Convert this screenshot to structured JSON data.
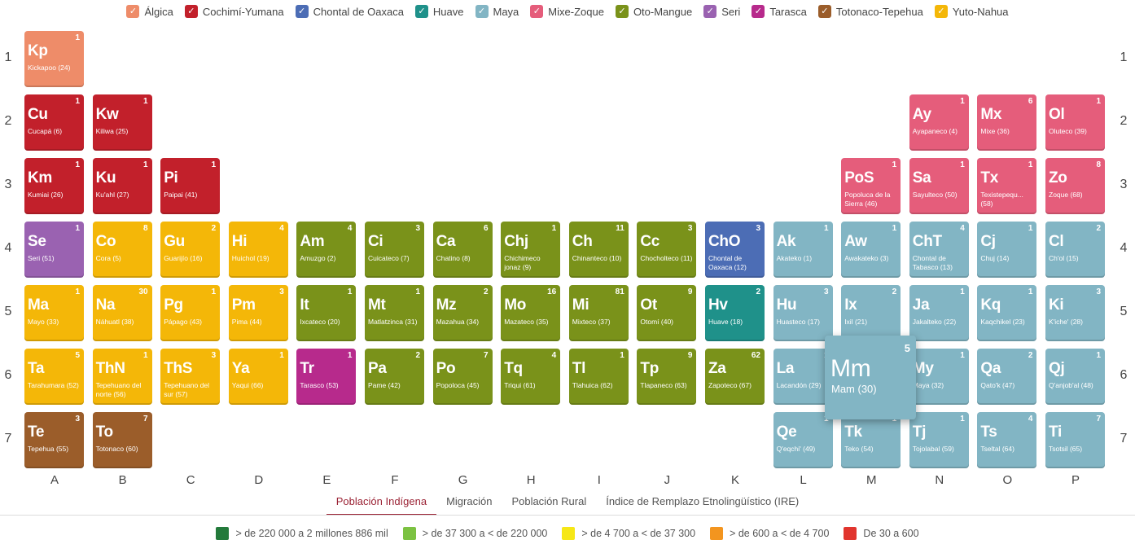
{
  "families": [
    {
      "name": "Álgica",
      "color": "#ee8c69"
    },
    {
      "name": "Cochimí-Yumana",
      "color": "#c2202b"
    },
    {
      "name": "Chontal de Oaxaca",
      "color": "#4c6db5"
    },
    {
      "name": "Huave",
      "color": "#1f918a"
    },
    {
      "name": "Maya",
      "color": "#82b5c4"
    },
    {
      "name": "Mixe-Zoque",
      "color": "#e55d7b"
    },
    {
      "name": "Oto-Mangue",
      "color": "#7a921a"
    },
    {
      "name": "Seri",
      "color": "#9a62b1"
    },
    {
      "name": "Tarasca",
      "color": "#b72a8c"
    },
    {
      "name": "Totonaco-Tepehua",
      "color": "#9b5d2a"
    },
    {
      "name": "Yuto-Nahua",
      "color": "#f4b708"
    }
  ],
  "check_glyph": "✓",
  "row_labels": [
    "1",
    "2",
    "3",
    "4",
    "5",
    "6",
    "7"
  ],
  "col_labels": [
    "A",
    "B",
    "C",
    "D",
    "E",
    "F",
    "G",
    "H",
    "I",
    "J",
    "K",
    "L",
    "M",
    "N",
    "O",
    "P"
  ],
  "elements": [
    {
      "sym": "Kp",
      "name": "Kickapoo (24)",
      "num": "1",
      "fam": 0,
      "row": 1,
      "col": 1
    },
    {
      "sym": "Cu",
      "name": "Cucapá (6)",
      "num": "1",
      "fam": 1,
      "row": 2,
      "col": 1
    },
    {
      "sym": "Kw",
      "name": "Kiliwa (25)",
      "num": "1",
      "fam": 1,
      "row": 2,
      "col": 2
    },
    {
      "sym": "Ay",
      "name": "Ayapaneco (4)",
      "num": "1",
      "fam": 5,
      "row": 2,
      "col": 14
    },
    {
      "sym": "Mx",
      "name": "Mixe (36)",
      "num": "6",
      "fam": 5,
      "row": 2,
      "col": 15
    },
    {
      "sym": "Ol",
      "name": "Oluteco (39)",
      "num": "1",
      "fam": 5,
      "row": 2,
      "col": 16
    },
    {
      "sym": "Km",
      "name": "Kumiai (26)",
      "num": "1",
      "fam": 1,
      "row": 3,
      "col": 1
    },
    {
      "sym": "Ku",
      "name": "Ku'ahl (27)",
      "num": "1",
      "fam": 1,
      "row": 3,
      "col": 2
    },
    {
      "sym": "Pi",
      "name": "Paipai (41)",
      "num": "1",
      "fam": 1,
      "row": 3,
      "col": 3
    },
    {
      "sym": "PoS",
      "name": "Popoluca de la Sierra (46)",
      "num": "1",
      "fam": 5,
      "row": 3,
      "col": 13
    },
    {
      "sym": "Sa",
      "name": "Sayulteco (50)",
      "num": "1",
      "fam": 5,
      "row": 3,
      "col": 14
    },
    {
      "sym": "Tx",
      "name": "Texistepequ... (58)",
      "num": "1",
      "fam": 5,
      "row": 3,
      "col": 15
    },
    {
      "sym": "Zo",
      "name": "Zoque (68)",
      "num": "8",
      "fam": 5,
      "row": 3,
      "col": 16
    },
    {
      "sym": "Se",
      "name": "Seri (51)",
      "num": "1",
      "fam": 7,
      "row": 4,
      "col": 1
    },
    {
      "sym": "Co",
      "name": "Cora (5)",
      "num": "8",
      "fam": 10,
      "row": 4,
      "col": 2
    },
    {
      "sym": "Gu",
      "name": "Guarijío (16)",
      "num": "2",
      "fam": 10,
      "row": 4,
      "col": 3
    },
    {
      "sym": "Hi",
      "name": "Huichol (19)",
      "num": "4",
      "fam": 10,
      "row": 4,
      "col": 4
    },
    {
      "sym": "Am",
      "name": "Amuzgo (2)",
      "num": "4",
      "fam": 6,
      "row": 4,
      "col": 5
    },
    {
      "sym": "Ci",
      "name": "Cuicateco (7)",
      "num": "3",
      "fam": 6,
      "row": 4,
      "col": 6
    },
    {
      "sym": "Ca",
      "name": "Chatino (8)",
      "num": "6",
      "fam": 6,
      "row": 4,
      "col": 7
    },
    {
      "sym": "Chj",
      "name": "Chichimeco jonaz (9)",
      "num": "1",
      "fam": 6,
      "row": 4,
      "col": 8
    },
    {
      "sym": "Ch",
      "name": "Chinanteco (10)",
      "num": "11",
      "fam": 6,
      "row": 4,
      "col": 9
    },
    {
      "sym": "Cc",
      "name": "Chocholteco (11)",
      "num": "3",
      "fam": 6,
      "row": 4,
      "col": 10
    },
    {
      "sym": "ChO",
      "name": "Chontal de Oaxaca (12)",
      "num": "3",
      "fam": 2,
      "row": 4,
      "col": 11
    },
    {
      "sym": "Ak",
      "name": "Akateko (1)",
      "num": "1",
      "fam": 4,
      "row": 4,
      "col": 12
    },
    {
      "sym": "Aw",
      "name": "Awakateko (3)",
      "num": "1",
      "fam": 4,
      "row": 4,
      "col": 13
    },
    {
      "sym": "ChT",
      "name": "Chontal de Tabasco (13)",
      "num": "4",
      "fam": 4,
      "row": 4,
      "col": 14
    },
    {
      "sym": "Cj",
      "name": "Chuj (14)",
      "num": "1",
      "fam": 4,
      "row": 4,
      "col": 15
    },
    {
      "sym": "Cl",
      "name": "Ch'ol (15)",
      "num": "2",
      "fam": 4,
      "row": 4,
      "col": 16
    },
    {
      "sym": "Ma",
      "name": "Mayo (33)",
      "num": "1",
      "fam": 10,
      "row": 5,
      "col": 1
    },
    {
      "sym": "Na",
      "name": "Náhuatl (38)",
      "num": "30",
      "fam": 10,
      "row": 5,
      "col": 2
    },
    {
      "sym": "Pg",
      "name": "Pápago (43)",
      "num": "1",
      "fam": 10,
      "row": 5,
      "col": 3
    },
    {
      "sym": "Pm",
      "name": "Pima (44)",
      "num": "3",
      "fam": 10,
      "row": 5,
      "col": 4
    },
    {
      "sym": "It",
      "name": "Ixcateco (20)",
      "num": "1",
      "fam": 6,
      "row": 5,
      "col": 5
    },
    {
      "sym": "Mt",
      "name": "Matlatzinca (31)",
      "num": "1",
      "fam": 6,
      "row": 5,
      "col": 6
    },
    {
      "sym": "Mz",
      "name": "Mazahua (34)",
      "num": "2",
      "fam": 6,
      "row": 5,
      "col": 7
    },
    {
      "sym": "Mo",
      "name": "Mazateco (35)",
      "num": "16",
      "fam": 6,
      "row": 5,
      "col": 8
    },
    {
      "sym": "Mi",
      "name": "Mixteco (37)",
      "num": "81",
      "fam": 6,
      "row": 5,
      "col": 9
    },
    {
      "sym": "Ot",
      "name": "Otomí (40)",
      "num": "9",
      "fam": 6,
      "row": 5,
      "col": 10
    },
    {
      "sym": "Hv",
      "name": "Huave (18)",
      "num": "2",
      "fam": 3,
      "row": 5,
      "col": 11
    },
    {
      "sym": "Hu",
      "name": "Huasteco (17)",
      "num": "3",
      "fam": 4,
      "row": 5,
      "col": 12
    },
    {
      "sym": "Ix",
      "name": "Ixil (21)",
      "num": "2",
      "fam": 4,
      "row": 5,
      "col": 13
    },
    {
      "sym": "Ja",
      "name": "Jakalteko (22)",
      "num": "1",
      "fam": 4,
      "row": 5,
      "col": 14
    },
    {
      "sym": "Kq",
      "name": "Kaqchikel (23)",
      "num": "1",
      "fam": 4,
      "row": 5,
      "col": 15
    },
    {
      "sym": "Ki",
      "name": "K'iche' (28)",
      "num": "3",
      "fam": 4,
      "row": 5,
      "col": 16
    },
    {
      "sym": "Ta",
      "name": "Tarahumara (52)",
      "num": "5",
      "fam": 10,
      "row": 6,
      "col": 1
    },
    {
      "sym": "ThN",
      "name": "Tepehuano del norte (56)",
      "num": "1",
      "fam": 10,
      "row": 6,
      "col": 2
    },
    {
      "sym": "ThS",
      "name": "Tepehuano del sur (57)",
      "num": "3",
      "fam": 10,
      "row": 6,
      "col": 3
    },
    {
      "sym": "Ya",
      "name": "Yaqui (66)",
      "num": "1",
      "fam": 10,
      "row": 6,
      "col": 4
    },
    {
      "sym": "Tr",
      "name": "Tarasco (53)",
      "num": "1",
      "fam": 8,
      "row": 6,
      "col": 5
    },
    {
      "sym": "Pa",
      "name": "Pame (42)",
      "num": "2",
      "fam": 6,
      "row": 6,
      "col": 6
    },
    {
      "sym": "Po",
      "name": "Popoloca (45)",
      "num": "7",
      "fam": 6,
      "row": 6,
      "col": 7
    },
    {
      "sym": "Tq",
      "name": "Triqui (61)",
      "num": "4",
      "fam": 6,
      "row": 6,
      "col": 8
    },
    {
      "sym": "Tl",
      "name": "Tlahuica (62)",
      "num": "1",
      "fam": 6,
      "row": 6,
      "col": 9
    },
    {
      "sym": "Tp",
      "name": "Tlapaneco (63)",
      "num": "9",
      "fam": 6,
      "row": 6,
      "col": 10
    },
    {
      "sym": "Za",
      "name": "Zapoteco (67)",
      "num": "62",
      "fam": 6,
      "row": 6,
      "col": 11
    },
    {
      "sym": "La",
      "name": "Lacandón (29)",
      "num": "1",
      "fam": 4,
      "row": 6,
      "col": 12
    },
    {
      "sym": "My",
      "name": "Maya (32)",
      "num": "1",
      "fam": 4,
      "row": 6,
      "col": 14
    },
    {
      "sym": "Qa",
      "name": "Qato'k (47)",
      "num": "2",
      "fam": 4,
      "row": 6,
      "col": 15
    },
    {
      "sym": "Qj",
      "name": "Q'anjob'al (48)",
      "num": "1",
      "fam": 4,
      "row": 6,
      "col": 16
    },
    {
      "sym": "Te",
      "name": "Tepehua (55)",
      "num": "3",
      "fam": 9,
      "row": 7,
      "col": 1
    },
    {
      "sym": "To",
      "name": "Totonaco (60)",
      "num": "7",
      "fam": 9,
      "row": 7,
      "col": 2
    },
    {
      "sym": "Qe",
      "name": "Q'eqchi' (49)",
      "num": "1",
      "fam": 4,
      "row": 7,
      "col": 12
    },
    {
      "sym": "Tk",
      "name": "Teko (54)",
      "num": "1",
      "fam": 4,
      "row": 7,
      "col": 13
    },
    {
      "sym": "Tj",
      "name": "Tojolabal (59)",
      "num": "1",
      "fam": 4,
      "row": 7,
      "col": 14
    },
    {
      "sym": "Ts",
      "name": "Tseltal (64)",
      "num": "4",
      "fam": 4,
      "row": 7,
      "col": 15
    },
    {
      "sym": "Ti",
      "name": "Tsotsil (65)",
      "num": "7",
      "fam": 4,
      "row": 7,
      "col": 16
    }
  ],
  "highlighted": {
    "sym": "Mm",
    "name": "Mam (30)",
    "num": "5",
    "fam": 4
  },
  "tabs": [
    {
      "label": "Población Indígena",
      "active": true
    },
    {
      "label": "Migración",
      "active": false
    },
    {
      "label": "Población Rural",
      "active": false
    },
    {
      "label": "Índice de Remplazo Etnolingüístico (IRE)",
      "active": false
    }
  ],
  "scale": [
    {
      "label": "> de 220 000 a 2 millones 886 mil",
      "color": "#237a3b"
    },
    {
      "label": "> de 37 300 a < de 220 000",
      "color": "#7cc242"
    },
    {
      "label": "> de 4 700 a < de 37 300",
      "color": "#f6e716"
    },
    {
      "label": "> de 600 a < de 4 700",
      "color": "#f3951f"
    },
    {
      "label": "De 30 a 600",
      "color": "#e1352e"
    }
  ]
}
